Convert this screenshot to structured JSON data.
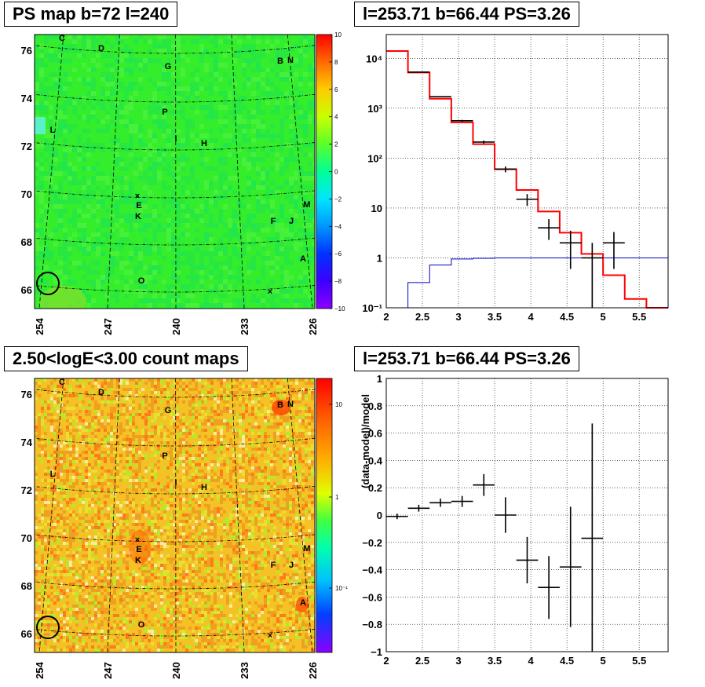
{
  "titles": {
    "ps_map": "PS map b=72 l=240",
    "spectrum": "l=253.71 b=66.44 PS=3.26",
    "count_map": "2.50<logE<3.00 count maps",
    "residual": "l=253.71 b=66.44 PS=3.26"
  },
  "colors": {
    "model": "#ff0000",
    "background": "#0000cc",
    "data": "#000000"
  },
  "maps": {
    "lon_ticks": [
      "254",
      "247",
      "240",
      "233",
      "226"
    ],
    "lat_ticks": [
      "76",
      "74",
      "72",
      "70",
      "68",
      "66"
    ],
    "sources": [
      "C",
      "D",
      "G",
      "B",
      "N",
      "L",
      "P",
      "I",
      "H",
      "E",
      "K",
      "M",
      "F",
      "J",
      "A",
      "O"
    ],
    "ps_colorbar_ticks": [
      "10",
      "8",
      "6",
      "4",
      "2",
      "0",
      "−2",
      "−4",
      "−6",
      "−8",
      "−10"
    ],
    "count_colorbar_ticks": [
      "10",
      "1",
      "10⁻¹"
    ]
  },
  "chart_data": [
    {
      "type": "line",
      "name": "spectrum",
      "log_y": true,
      "xlim": [
        2.0,
        5.9
      ],
      "ylim": [
        0.1,
        30000
      ],
      "x_ticks": [
        "2",
        "2.5",
        "3",
        "3.5",
        "4",
        "4.5",
        "5",
        "5.5"
      ],
      "y_ticks": [
        "10⁴",
        "10³",
        "10²",
        "10",
        "1",
        "10⁻¹"
      ],
      "grid": true,
      "model_step": {
        "edges": [
          2.0,
          2.3,
          2.6,
          2.9,
          3.2,
          3.5,
          3.8,
          4.1,
          4.4,
          4.7,
          5.0,
          5.3,
          5.6,
          5.9
        ],
        "values": [
          14000,
          5200,
          1550,
          520,
          190,
          60,
          23,
          8.5,
          3.2,
          1.2,
          0.45,
          0.15,
          0.06
        ]
      },
      "background_step": {
        "edges": [
          2.0,
          2.3,
          2.6,
          2.9,
          3.2,
          3.5,
          5.9
        ],
        "values": [
          0.1,
          0.32,
          0.72,
          0.95,
          0.98,
          1.0
        ]
      },
      "data_points": [
        {
          "x": 2.45,
          "y": 5300,
          "yerr_lo": 5230,
          "yerr_hi": 5370
        },
        {
          "x": 2.75,
          "y": 1700,
          "yerr_lo": 1660,
          "yerr_hi": 1740
        },
        {
          "x": 3.05,
          "y": 560,
          "yerr_lo": 535,
          "yerr_hi": 585
        },
        {
          "x": 3.35,
          "y": 210,
          "yerr_lo": 196,
          "yerr_hi": 225
        },
        {
          "x": 3.65,
          "y": 60,
          "yerr_lo": 52,
          "yerr_hi": 68
        },
        {
          "x": 3.95,
          "y": 15,
          "yerr_lo": 11,
          "yerr_hi": 19
        },
        {
          "x": 4.25,
          "y": 4,
          "yerr_lo": 2.3,
          "yerr_hi": 6
        },
        {
          "x": 4.55,
          "y": 2,
          "yerr_lo": 0.6,
          "yerr_hi": 3.5
        },
        {
          "x": 4.85,
          "y": 1,
          "yerr_lo": 0.1,
          "yerr_hi": 2
        },
        {
          "x": 5.15,
          "y": 2,
          "yerr_lo": 0.6,
          "yerr_hi": 3.3
        }
      ],
      "bin_half_width": 0.15
    },
    {
      "type": "scatter",
      "name": "residual",
      "xlim": [
        2.0,
        5.9
      ],
      "ylim": [
        -1,
        1
      ],
      "ylabel": "(data-model)/model",
      "x_ticks": [
        "2",
        "2.5",
        "3",
        "3.5",
        "4",
        "4.5",
        "5",
        "5.5"
      ],
      "y_ticks": [
        "1",
        "0.8",
        "0.6",
        "0.4",
        "0.2",
        "0",
        "−0.2",
        "−0.4",
        "−0.6",
        "−0.8",
        "−1"
      ],
      "grid": true,
      "points": [
        {
          "x": 2.15,
          "y": -0.01,
          "err": 0.02
        },
        {
          "x": 2.45,
          "y": 0.05,
          "err": 0.025
        },
        {
          "x": 2.75,
          "y": 0.09,
          "err": 0.03
        },
        {
          "x": 3.05,
          "y": 0.1,
          "err": 0.04
        },
        {
          "x": 3.35,
          "y": 0.22,
          "err": 0.08
        },
        {
          "x": 3.65,
          "y": 0.0,
          "err": 0.13
        },
        {
          "x": 3.95,
          "y": -0.33,
          "err": 0.17
        },
        {
          "x": 4.25,
          "y": -0.53,
          "err": 0.23
        },
        {
          "x": 4.55,
          "y": -0.38,
          "err": 0.44
        },
        {
          "x": 4.85,
          "y": -0.17,
          "err": 0.84
        }
      ],
      "bin_half_width": 0.15
    }
  ]
}
